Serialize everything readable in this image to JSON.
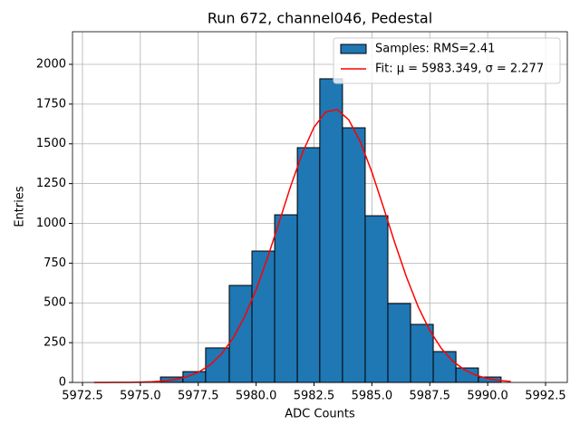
{
  "chart_data": {
    "type": "histogram",
    "title": "Run 672, channel046, Pedestal",
    "x_label": "ADC Counts",
    "y_label": "Entries",
    "xlim": [
      5972.07,
      5993.44
    ],
    "ylim": [
      0,
      2205
    ],
    "xticks": [
      {
        "value": 5972.5,
        "label": "5972.5"
      },
      {
        "value": 5975,
        "label": "5975.0"
      },
      {
        "value": 5977.5,
        "label": "5977.5"
      },
      {
        "value": 5980,
        "label": "5980.0"
      },
      {
        "value": 5982.5,
        "label": "5982.5"
      },
      {
        "value": 5985,
        "label": "5985.0"
      },
      {
        "value": 5987.5,
        "label": "5987.5"
      },
      {
        "value": 5990,
        "label": "5990.0"
      },
      {
        "value": 5992.5,
        "label": "5992.5"
      }
    ],
    "yticks": [
      0,
      250,
      500,
      750,
      1000,
      1250,
      1500,
      1750,
      2000
    ],
    "grid": true,
    "legend": "upper right",
    "series": [
      {
        "name": "Samples: RMS=2.41",
        "type": "histogram",
        "color": "#1f77b4",
        "edgecolor": "#000000",
        "bins": [
          5975.87,
          5976.84,
          5977.82,
          5978.84,
          5979.82,
          5980.8,
          5981.78,
          5982.75,
          5983.73,
          5984.71,
          5985.69,
          5986.67,
          5987.65,
          5988.63,
          5989.6,
          5990.58
        ],
        "values": [
          34,
          68,
          217,
          610,
          826,
          1054,
          1476,
          1909,
          1601,
          1048,
          496,
          365,
          194,
          91,
          34
        ]
      },
      {
        "name": "Fit: μ = 5983.349, σ = 2.277",
        "type": "line",
        "color": "#ff0000",
        "x": [
          5973,
          5973.5,
          5974,
          5974.5,
          5975,
          5975.5,
          5976,
          5976.5,
          5977,
          5977.5,
          5978,
          5978.5,
          5979,
          5979.5,
          5980,
          5980.5,
          5981,
          5981.5,
          5982,
          5982.5,
          5983,
          5983.5,
          5984,
          5984.5,
          5985,
          5985.5,
          5986,
          5986.5,
          5987,
          5987.5,
          5988,
          5988.5,
          5989,
          5989.5,
          5990,
          5990.5,
          5991
        ],
        "values": [
          0.1,
          0.2,
          0.4,
          0.9,
          2.1,
          4.5,
          9.4,
          18.6,
          35.2,
          63.5,
          108.9,
          178.0,
          277.6,
          412.1,
          582.9,
          786.2,
          1010.3,
          1236.9,
          1443.1,
          1604.6,
          1699.9,
          1716.2,
          1651.2,
          1513.6,
          1322.3,
          1101.0,
          873.2,
          660.1,
          475.6,
          326.5,
          213.6,
          133.1,
          79.1,
          44.7,
          24.1,
          12.4,
          6.1
        ]
      }
    ]
  }
}
